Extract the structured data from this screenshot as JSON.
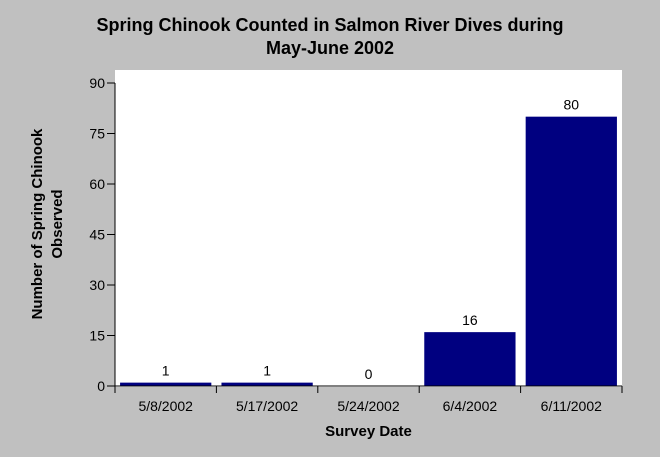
{
  "chart_data": {
    "type": "bar",
    "title_lines": [
      "Spring Chinook Counted in Salmon River Dives during",
      "May-June 2002"
    ],
    "xlabel": "Survey Date",
    "ylabel_lines": [
      "Number of Spring Chinook",
      "Observed"
    ],
    "categories": [
      "5/8/2002",
      "5/17/2002",
      "5/24/2002",
      "6/4/2002",
      "6/11/2002"
    ],
    "values": [
      1,
      1,
      0,
      16,
      80
    ],
    "data_labels": [
      "1",
      "1",
      "0",
      "16",
      "80"
    ],
    "ylim": [
      0,
      90
    ],
    "yticks": [
      0,
      15,
      30,
      45,
      60,
      75,
      90
    ],
    "bar_color": "#000080",
    "grid": false,
    "legend": "none"
  }
}
